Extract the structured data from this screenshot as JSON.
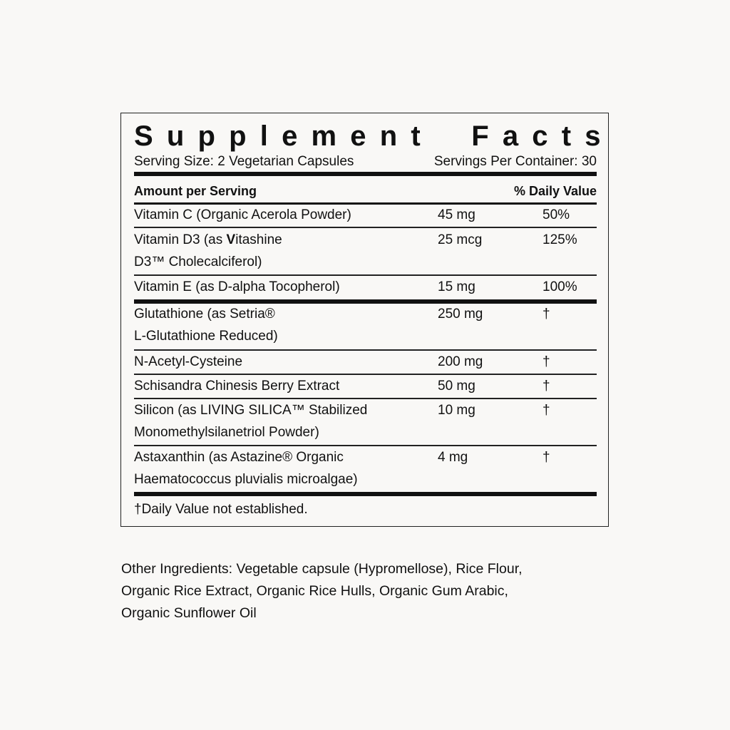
{
  "label": {
    "title": "Supplement Facts",
    "serving_size": "Serving Size: 2 Vegetarian Capsules",
    "servings_per_container": "Servings Per Container: 30",
    "header_amount": "Amount per Serving",
    "header_dv": "% Daily Value",
    "rows": [
      {
        "name": "Vitamin C (Organic Acerola Powder)",
        "amount": "45 mg",
        "dv": "50%"
      },
      {
        "name_pre": "Vitamin D3 (as ",
        "name_bold": "V",
        "name_post": "itashine",
        "name_line2": "D3™ Cholecalciferol)",
        "amount": "25 mcg",
        "dv": "125%"
      },
      {
        "name": "Vitamin E (as D-alpha Tocopherol)",
        "amount": "15 mg",
        "dv": "100%"
      },
      {
        "name": "Glutathione (as Setria®",
        "name_line2": "L-Glutathione Reduced)",
        "amount": "250 mg",
        "dv": "†"
      },
      {
        "name": "N-Acetyl-Cysteine",
        "amount": "200 mg",
        "dv": "†"
      },
      {
        "name": "Schisandra Chinesis Berry Extract",
        "amount": "50 mg",
        "dv": "†"
      },
      {
        "name": "Silicon (as LIVING SILICA™ Stabilized",
        "name_line2": "Monomethylsilanetriol Powder)",
        "amount": "10 mg",
        "dv": "†"
      },
      {
        "name": "Astaxanthin (as Astazine® Organic",
        "name_line2": "Haematococcus pluvialis microalgae)",
        "amount": "4 mg",
        "dv": "†"
      }
    ],
    "footnote": "†Daily Value not established."
  },
  "other_ingredients": {
    "lines": [
      "Other Ingredients: Vegetable capsule (Hypromellose), Rice Flour,",
      "Organic Rice Extract, Organic Rice Hulls, Organic Gum Arabic,",
      "Organic Sunflower Oil"
    ]
  }
}
